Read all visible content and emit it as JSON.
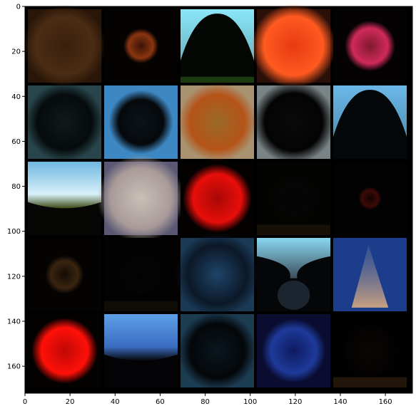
{
  "figure": {
    "x_axis": {
      "range": [
        0,
        172
      ],
      "ticks": [
        0,
        20,
        40,
        60,
        80,
        100,
        120,
        140,
        160
      ]
    },
    "y_axis": {
      "range": [
        0,
        172
      ],
      "ticks": [
        0,
        20,
        40,
        60,
        80,
        100,
        120,
        140,
        160
      ]
    }
  },
  "grid": {
    "rows": 5,
    "cols": 5,
    "cells": [
      {
        "kind": "blob",
        "bg": "#2a1608",
        "c1": "#4a2c14",
        "c2": "#3a200c",
        "r": 0.9
      },
      {
        "kind": "blob",
        "bg": "#050302",
        "c1": "#8a3510",
        "c2": "#3a1405",
        "r": 0.38
      },
      {
        "kind": "arch",
        "bg": "#8ae6f8",
        "fg": "#050705",
        "base": "#1c3a10"
      },
      {
        "kind": "blob",
        "bg": "#2a1008",
        "c1": "#ff5a20",
        "c2": "#e83a12",
        "r": 0.92
      },
      {
        "kind": "blob",
        "bg": "#050204",
        "c1": "#d02a5a",
        "c2": "#801830",
        "r": 0.55
      },
      {
        "kind": "blob",
        "bg": "#27454a",
        "c1": "#060b0c",
        "c2": "#10191b",
        "r": 0.85
      },
      {
        "kind": "blob",
        "bg": "#3d87c2",
        "c1": "#06090c",
        "c2": "#0a141a",
        "r": 0.7
      },
      {
        "kind": "blob",
        "bg": "#a89270",
        "c1": "#b55318",
        "c2": "#9a6a28",
        "r": 0.85
      },
      {
        "kind": "blob",
        "bg": "#7a8486",
        "c1": "#040404",
        "c2": "#0a0a0a",
        "r": 0.9
      },
      {
        "kind": "arch",
        "bg": "#6ab8e8",
        "fg": "#04080a",
        "base": "#04080a"
      },
      {
        "kind": "sky",
        "bg": "#060604",
        "top": "#6fb8e0",
        "mid": "#d8f0f8",
        "ground": "#3c4a14"
      },
      {
        "kind": "blob",
        "bg": "#5a5874",
        "c1": "#a89a98",
        "c2": "#c8c0b8",
        "r": 0.95
      },
      {
        "kind": "blob",
        "bg": "#040101",
        "c1": "#e80e0a",
        "c2": "#a80806",
        "r": 0.75
      },
      {
        "kind": "blob",
        "bg": "#030302",
        "c1": "#060504",
        "c2": "#040303",
        "r": 0.5,
        "base": "#1c1408"
      },
      {
        "kind": "blob",
        "bg": "#030202",
        "c1": "#3c0a06",
        "c2": "#100302",
        "r": 0.25
      },
      {
        "kind": "blob",
        "bg": "#040302",
        "c1": "#3a2410",
        "c2": "#140c05",
        "r": 0.42
      },
      {
        "kind": "blob",
        "bg": "#020202",
        "c1": "#040404",
        "c2": "#030303",
        "r": 0.5,
        "base": "#141008"
      },
      {
        "kind": "blob",
        "bg": "#1a3a56",
        "c1": "#0c1828",
        "c2": "#1e4468",
        "r": 0.92
      },
      {
        "kind": "hourglass",
        "bg": "#040608",
        "top": "#8ad8f2",
        "mid": "#3c4e5a",
        "bottom": "#1c2430"
      },
      {
        "kind": "cone",
        "bg": "#1c3c8c",
        "c1": "#c8a080",
        "c2": "#6a7aa0"
      },
      {
        "kind": "blob",
        "bg": "#040101",
        "c1": "#ff1008",
        "c2": "#c00806",
        "r": 0.72
      },
      {
        "kind": "sky",
        "bg": "#040406",
        "top": "#5ea0e8",
        "mid": "#3a6cc0",
        "ground": "#05070a"
      },
      {
        "kind": "blob",
        "bg": "#1c3c52",
        "c1": "#04070a",
        "c2": "#0a161e",
        "r": 0.85
      },
      {
        "kind": "blob",
        "bg": "#0a0c30",
        "c1": "#1e3a9a",
        "c2": "#0e1a60",
        "r": 0.7
      },
      {
        "kind": "blob",
        "bg": "#020101",
        "c1": "#050302",
        "c2": "#0a0604",
        "r": 0.6,
        "base": "#2a1a0c"
      }
    ]
  }
}
